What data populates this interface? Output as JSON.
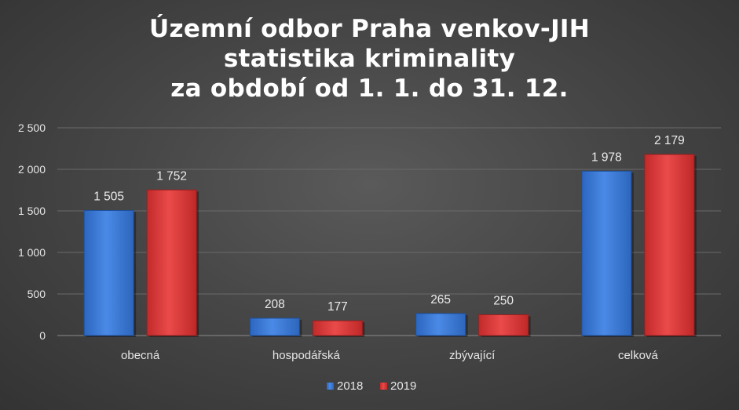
{
  "chart_data": {
    "type": "bar",
    "title": [
      "Územní odbor Praha venkov-JIH",
      "statistika kriminality",
      "za období od 1. 1. do 31. 12."
    ],
    "categories": [
      "obecná",
      "hospodářská",
      "zbývající",
      "celková"
    ],
    "series": [
      {
        "name": "2018",
        "values": [
          1505,
          208,
          265,
          1978
        ],
        "labels": [
          "1 505",
          "208",
          "265",
          "1 978"
        ],
        "color": "#3b7ad6"
      },
      {
        "name": "2019",
        "values": [
          1752,
          177,
          250,
          2179
        ],
        "labels": [
          "1 752",
          "177",
          "250",
          "2 179"
        ],
        "color": "#dd3a3a"
      }
    ],
    "ylim": [
      0,
      2500
    ],
    "yticks": [
      0,
      500,
      1000,
      1500,
      2000,
      2500
    ],
    "ytick_labels": [
      "0",
      "500",
      "1 000",
      "1 500",
      "2 000",
      "2 500"
    ],
    "grid": true,
    "legend": "bottom"
  }
}
